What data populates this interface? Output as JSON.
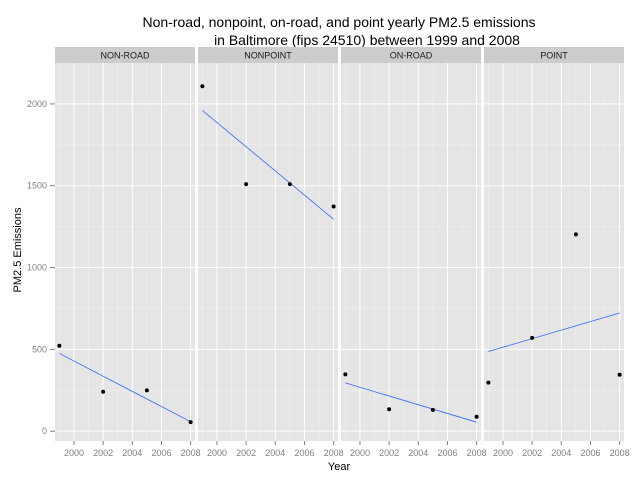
{
  "chart_data": {
    "type": "scatter",
    "title_lines": [
      "Non-road, nonpoint, on-road, and point yearly PM2.5 emissions",
      "in Baltimore (fips 24510) between 1999 and 2008"
    ],
    "xlabel": "Year",
    "ylabel": "PM2.5 Emissions",
    "xlim": [
      1998.7,
      2008.3
    ],
    "ylim": [
      -60,
      2250
    ],
    "x_ticks": [
      2000,
      2002,
      2004,
      2006,
      2008
    ],
    "y_ticks": [
      0,
      500,
      1000,
      1500,
      2000
    ],
    "grid": true,
    "trend_line_color": "#3366ff",
    "point_color": "#000000",
    "panel_bg": "#e5e5e5",
    "strip_bg": "#cccccc",
    "facets": [
      {
        "label": "NON-ROAD",
        "x": [
          1999,
          2002,
          2005,
          2008
        ],
        "y": [
          522,
          241,
          249,
          55
        ],
        "trend": {
          "x": [
            1999,
            2008
          ],
          "y": [
            475,
            58
          ]
        }
      },
      {
        "label": "NONPOINT",
        "x": [
          1999,
          2002,
          2005,
          2008
        ],
        "y": [
          2108,
          1510,
          1510,
          1373
        ],
        "trend": {
          "x": [
            1999,
            2008
          ],
          "y": [
            1960,
            1295
          ]
        }
      },
      {
        "label": "ON-ROAD",
        "x": [
          1999,
          2002,
          2005,
          2008
        ],
        "y": [
          347,
          134,
          130,
          88
        ],
        "trend": {
          "x": [
            1999,
            2008
          ],
          "y": [
            295,
            55
          ]
        }
      },
      {
        "label": "POINT",
        "x": [
          1999,
          2002,
          2005,
          2008
        ],
        "y": [
          297,
          570,
          1203,
          345
        ],
        "trend": {
          "x": [
            1999,
            2008
          ],
          "y": [
            487,
            722
          ]
        }
      }
    ]
  }
}
